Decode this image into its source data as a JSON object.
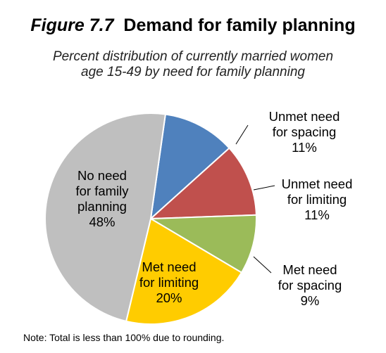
{
  "figure": {
    "number": "Figure 7.7",
    "title": "Demand for family planning",
    "note": "Note: Total is less than 100% due to rounding."
  },
  "chart_data": {
    "type": "pie",
    "subtitle": "Percent distribution of currently married women age 15-49 by need for family planning",
    "start_angle_deg": 8,
    "direction": "clockwise",
    "slices": [
      {
        "label": [
          "Unmet need",
          "for spacing"
        ],
        "value": 11,
        "value_label": "11%",
        "color": "#4F81BD"
      },
      {
        "label": [
          "Unmet need",
          "for limiting"
        ],
        "value": 11,
        "value_label": "11%",
        "color": "#C0504D"
      },
      {
        "label": [
          "Met need",
          "for spacing"
        ],
        "value": 9,
        "value_label": "9%",
        "color": "#9BBB59"
      },
      {
        "label": [
          "Met need",
          "for limiting"
        ],
        "value": 20,
        "value_label": "20%",
        "color": "#FFCC00"
      },
      {
        "label": [
          "No need",
          "for family",
          "planning"
        ],
        "value": 48,
        "value_label": "48%",
        "color": "#BFBFBF"
      }
    ]
  }
}
